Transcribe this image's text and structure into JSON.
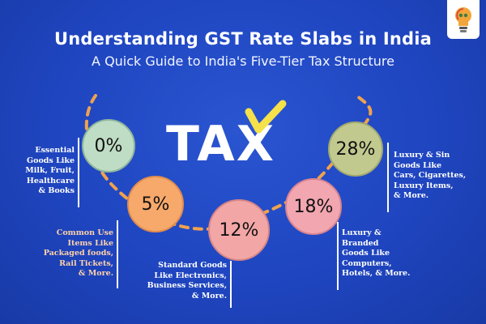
{
  "header": {
    "title": "Understanding GST Rate Slabs in India",
    "subtitle": "A Quick Guide to India's Five-Tier Tax Structure"
  },
  "logo": {
    "icon": "lightbulb-logo-icon"
  },
  "center_word": "TAX",
  "colors": {
    "background": "#1f45c0",
    "slab_0": "#bfdcc4",
    "slab_5": "#f7a96b",
    "slab_12": "#f3a6a6",
    "slab_18": "#f2a6b0",
    "slab_28": "#c2c98f",
    "dash": "#f0a24c",
    "tax_accent": "#f5e14a"
  },
  "slabs": [
    {
      "rate": "0%",
      "description": "Essential\nGoods Like\nMilk, Fruit,\nHealthcare\n& Books"
    },
    {
      "rate": "5%",
      "description": "Common Use\nItems Like\nPackaged foods,\nRail Tickets,\n& More."
    },
    {
      "rate": "12%",
      "description": "Standard Goods\nLike Electronics,\nBusiness Services,\n& More."
    },
    {
      "rate": "18%",
      "description": "Luxury &\nBranded\nGoods Like\nComputers,\nHotels, & More."
    },
    {
      "rate": "28%",
      "description": "Luxury & Sin\nGoods Like\nCars, Cigarettes,\nLuxury Items,\n& More."
    }
  ]
}
